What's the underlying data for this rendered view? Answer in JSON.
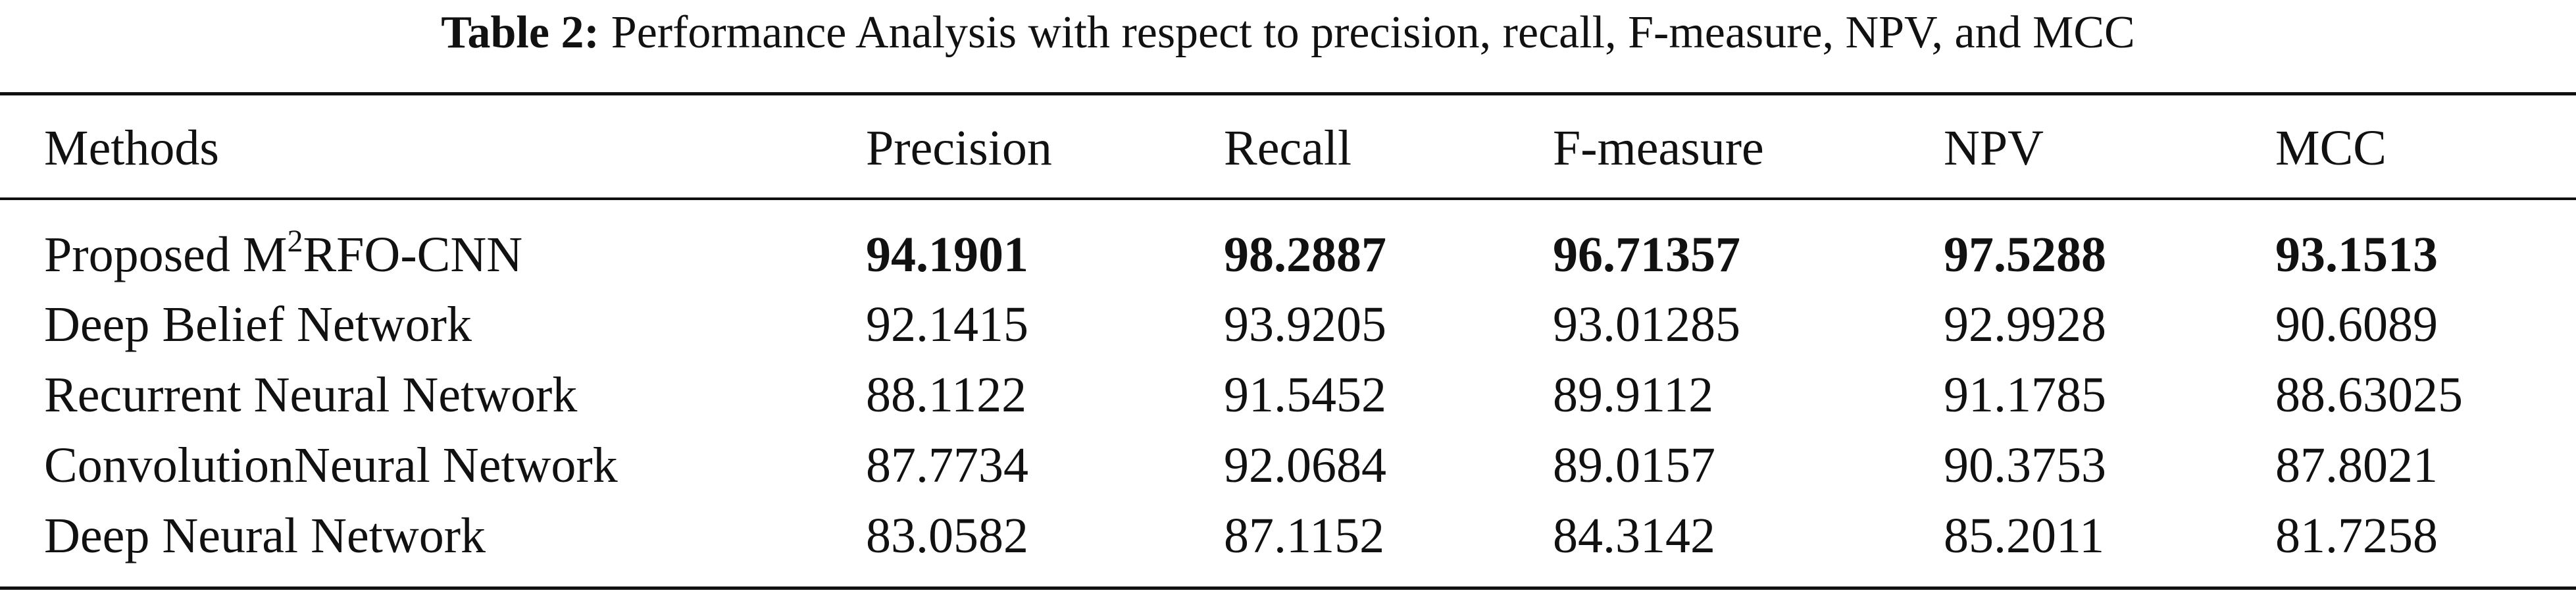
{
  "caption": {
    "label": "Table 2:",
    "text": "Performance Analysis with respect to precision, recall, F-measure, NPV, and MCC"
  },
  "table": {
    "header": [
      "Methods",
      "Precision",
      "Recall",
      "F-measure",
      "NPV",
      "MCC"
    ],
    "rows": [
      [
        {
          "text": "Proposed M",
          "sup": "2",
          "after": "RFO-CNN"
        },
        "94.1901",
        "98.2887",
        "96.71357",
        "97.5288",
        "93.1513"
      ],
      [
        "Deep Belief Network",
        "92.1415",
        "93.9205",
        "93.01285",
        "92.9928",
        "90.6089"
      ],
      [
        "Recurrent Neural Network",
        "88.1122",
        "91.5452",
        "89.9112",
        "91.1785",
        "88.63025"
      ],
      [
        "ConvolutionNeural Network",
        "87.7734",
        "92.0684",
        "89.0157",
        "90.3753",
        "87.8021"
      ],
      [
        "Deep Neural Network",
        "83.0582",
        "87.1152",
        "84.3142",
        "85.2011",
        "81.7258"
      ]
    ]
  }
}
